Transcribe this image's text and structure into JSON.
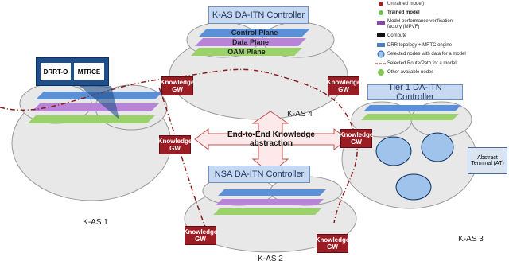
{
  "controllers": {
    "kas": "K-AS DA-ITN Controller",
    "nsa": "NSA DA-ITN Controller",
    "tier1": "Tier 1 DA-ITN Controller"
  },
  "planes": [
    "Control Plane",
    "Data Plane",
    "OAM Plane"
  ],
  "callout": [
    "DRRT-O",
    "MTRCE"
  ],
  "gateways": [
    "Knowledge GW",
    "Knowledge GW",
    "Knowledge GW",
    "Knowledge GW",
    "Knowledge GW",
    "Knowledge GW"
  ],
  "domains": [
    "K-AS 4",
    "K-AS 1",
    "K-AS 3",
    "K-AS 2"
  ],
  "abstraction": "End-to-End Knowledge abstraction",
  "abstract_terminal": "Abstract Terminal (AT)",
  "legend": [
    "Untrained model)",
    "Trained model",
    "Model performance verification factory (MPVF)",
    "Compute",
    "DRR topology + MRTC engine",
    "Selected nodes with data for a model",
    "Selected Route/Path for a model",
    "Other available nodes"
  ]
}
